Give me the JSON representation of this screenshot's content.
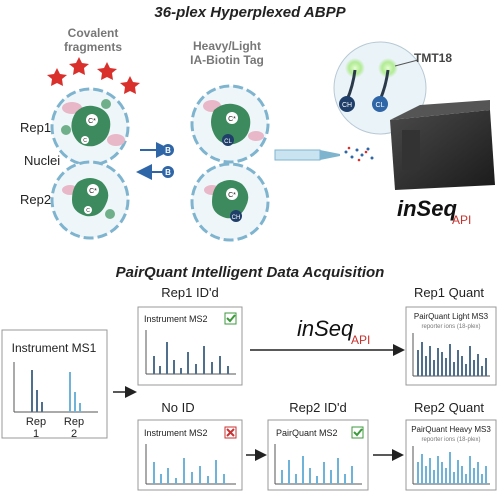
{
  "titles": {
    "top": "36-plex Hyperplexed ABPP",
    "bottom": "PairQuant Intelligent Data Acquisition"
  },
  "top_panel": {
    "covalent_fragments": [
      "Covalent",
      "fragments"
    ],
    "heavy_light_tag": [
      "Heavy/Light",
      "IA-Biotin Tag"
    ],
    "tmt": "TMT18",
    "rep1": "Rep1",
    "rep2": "Rep2",
    "nuclei": "Nuclei",
    "tag_badge": "B",
    "cys_labels": [
      "C*",
      "C",
      "CH",
      "CL"
    ],
    "brand_main": "inSeq",
    "brand_sub": "API"
  },
  "bottom_panel": {
    "instrument_ms1": {
      "title": "Instrument MS1",
      "rep1": [
        "Rep",
        "1"
      ],
      "rep2": [
        "Rep",
        "2"
      ]
    },
    "rep1_idd": {
      "title": "Rep1 ID'd",
      "box_label": "Instrument MS2"
    },
    "no_id": {
      "title": "No ID",
      "box_label": "Instrument MS2"
    },
    "rep2_idd": {
      "title": "Rep2 ID'd",
      "box_label": "PairQuant MS2"
    },
    "rep1_quant": {
      "title": "Rep1 Quant",
      "box_label": "PairQuant Light MS3",
      "box_sub": "reporter ions (18-plex)"
    },
    "rep2_quant": {
      "title": "Rep2 Quant",
      "box_label": "PairQuant Heavy MS3",
      "box_sub": "reporter ions (18-plex)"
    },
    "brand_main": "inSeq",
    "brand_sub": "API"
  },
  "colors": {
    "star": "#d9302c",
    "cell_border": "#7fb4cf",
    "cell_fill": "#eef6fa",
    "protein": "#3d8a5e",
    "protein_light": "#6fb08a",
    "pink": "#e8b8c8",
    "arrow_blue": "#2f66a8",
    "peak_dark": "#4f6f8c",
    "peak_light": "#6fb3d8",
    "check": "#3c9a3c",
    "cross": "#c83232",
    "brand_red": "#c8302c",
    "ms_box": "#2b2b2b",
    "glow": "#9be86c"
  }
}
